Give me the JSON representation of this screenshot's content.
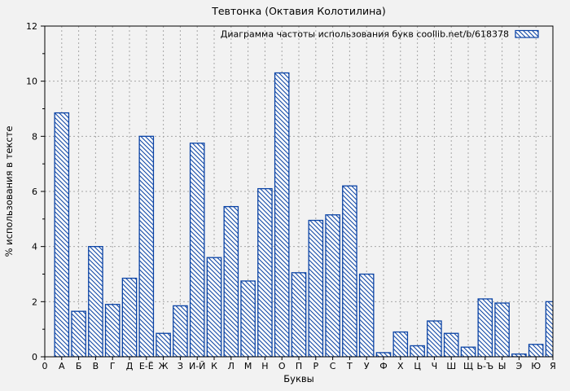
{
  "chart_data": {
    "type": "bar",
    "title": "Тевтонка (Октавия Колотилина)",
    "legend": {
      "label": "Диаграмма частоты использования букв coollib.net/b/618378",
      "position": "top-right-inside"
    },
    "xlabel": "Буквы",
    "ylabel": "% использования в тексте",
    "origin_tick_label": "0",
    "categories": [
      "А",
      "Б",
      "В",
      "Г",
      "Д",
      "Е-Ё",
      "Ж",
      "З",
      "И-Й",
      "К",
      "Л",
      "М",
      "Н",
      "О",
      "П",
      "Р",
      "С",
      "Т",
      "У",
      "Ф",
      "Х",
      "Ц",
      "Ч",
      "Ш",
      "Щ",
      "Ь-Ъ",
      "Ы",
      "Э",
      "Ю",
      "Я"
    ],
    "values": [
      8.85,
      1.65,
      4.0,
      1.9,
      2.85,
      8.0,
      0.85,
      1.85,
      7.75,
      3.6,
      5.45,
      2.75,
      6.1,
      10.3,
      3.05,
      4.95,
      5.15,
      6.2,
      3.0,
      0.15,
      0.9,
      0.4,
      1.3,
      0.85,
      0.35,
      2.1,
      1.95,
      0.1,
      0.45,
      2.0
    ],
    "ylim": [
      0,
      12
    ],
    "yticks": [
      0,
      2,
      4,
      6,
      8,
      10,
      12
    ],
    "y_minor_ticks": [
      1,
      3,
      5,
      7,
      9,
      11
    ],
    "grid": true,
    "bar_style": "hatched-diagonal",
    "colors": {
      "bar_stroke": "#0a43a5",
      "bar_fill": "#fbfbfb",
      "grid": "#a6a6a6",
      "text": "#000000",
      "background": "#f2f2f2"
    }
  }
}
